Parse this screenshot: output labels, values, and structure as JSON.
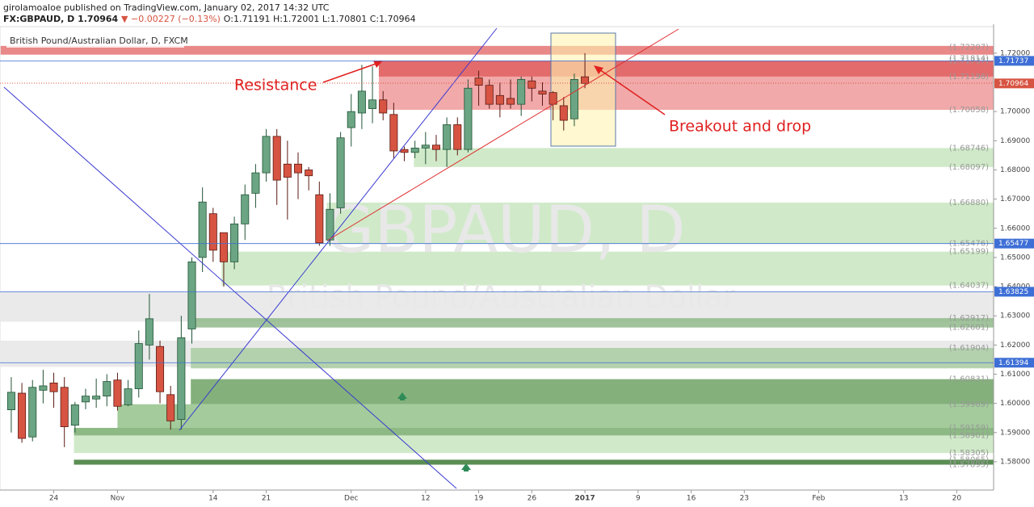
{
  "header": {
    "publisher": "girolamoaloe published on TradingView.com, January 02, 2017 14:32 UTC",
    "symbol": "FX:GBPAUD, D",
    "last": "1.70964",
    "change": "▼ −0.00227 (−0.13%)",
    "ohlc": "O:1.71191 H:1.72001 L:1.70801 C:1.70964"
  },
  "chart_data": {
    "type": "candlestick",
    "legend": "British Pound/Australian Dollar, D, FXCM",
    "watermark": "GBPAUD, D",
    "watermark_sub": "British Pound/Australian Dollar",
    "up_color": "#6ba583",
    "down_color": "#d75442",
    "candles": {
      "open": [
        1.5978,
        1.6035,
        1.5885,
        1.6045,
        1.607,
        1.6055,
        1.5925,
        1.6005,
        1.6015,
        1.6025,
        1.608,
        1.5995,
        1.605,
        1.62,
        1.6195,
        1.603,
        1.5945,
        1.6255,
        1.65,
        1.665,
        1.6585,
        1.6485,
        1.6615,
        1.672,
        1.679,
        1.6915,
        1.682,
        1.682,
        1.68,
        1.6715,
        1.656,
        1.667,
        1.6945,
        1.6995,
        1.701,
        1.704,
        1.699,
        1.687,
        1.686,
        1.6875,
        1.6885,
        1.687,
        1.6955,
        1.687,
        1.7115,
        1.709,
        1.7055,
        1.7045,
        1.7025,
        1.7105,
        1.707,
        1.7065,
        1.702,
        1.6975,
        1.71191
      ],
      "high": [
        1.609,
        1.607,
        1.608,
        1.6115,
        1.6105,
        1.609,
        1.6005,
        1.605,
        1.6085,
        1.61,
        1.6105,
        1.608,
        1.625,
        1.6375,
        1.6215,
        1.606,
        1.63,
        1.65,
        1.674,
        1.667,
        1.6585,
        1.664,
        1.675,
        1.682,
        1.694,
        1.694,
        1.69,
        1.686,
        1.681,
        1.676,
        1.672,
        1.693,
        1.706,
        1.716,
        1.7155,
        1.707,
        1.703,
        1.688,
        1.69,
        1.693,
        1.692,
        1.698,
        1.698,
        1.711,
        1.714,
        1.711,
        1.71,
        1.711,
        1.712,
        1.712,
        1.71,
        1.707,
        1.705,
        1.713,
        1.72001
      ],
      "low": [
        1.59,
        1.5865,
        1.587,
        1.6,
        1.5985,
        1.585,
        1.59,
        1.598,
        1.5985,
        1.599,
        1.5975,
        1.599,
        1.602,
        1.615,
        1.6,
        1.591,
        1.591,
        1.6205,
        1.645,
        1.6485,
        1.64,
        1.646,
        1.656,
        1.667,
        1.676,
        1.668,
        1.663,
        1.67,
        1.673,
        1.654,
        1.654,
        1.665,
        1.688,
        1.694,
        1.696,
        1.697,
        1.684,
        1.683,
        1.684,
        1.682,
        1.683,
        1.681,
        1.685,
        1.686,
        1.702,
        1.701,
        1.698,
        1.701,
        1.6985,
        1.7035,
        1.702,
        1.697,
        1.6935,
        1.695,
        1.70801
      ],
      "close": [
        1.6038,
        1.588,
        1.6055,
        1.606,
        1.604,
        1.592,
        1.5995,
        1.6025,
        1.6025,
        1.6075,
        1.599,
        1.605,
        1.6205,
        1.629,
        1.604,
        1.594,
        1.6225,
        1.6485,
        1.669,
        1.6525,
        1.6485,
        1.6615,
        1.6715,
        1.679,
        1.6915,
        1.6765,
        1.6775,
        1.679,
        1.678,
        1.655,
        1.6665,
        1.691,
        1.7,
        1.707,
        1.704,
        1.6995,
        1.6865,
        1.686,
        1.6875,
        1.6885,
        1.687,
        1.6955,
        1.687,
        1.708,
        1.709,
        1.7025,
        1.7025,
        1.7025,
        1.711,
        1.708,
        1.706,
        1.7025,
        1.697,
        1.711,
        1.70964
      ]
    },
    "xlim": [
      -1.06,
      92.47
    ],
    "xticks": [
      {
        "value": 4,
        "label": "24"
      },
      {
        "value": 10,
        "label": "Nov"
      },
      {
        "value": 19,
        "label": "14"
      },
      {
        "value": 24,
        "label": "21"
      },
      {
        "value": 32,
        "label": "Dec"
      },
      {
        "value": 39,
        "label": "12"
      },
      {
        "value": 44,
        "label": "19"
      },
      {
        "value": 49,
        "label": "26"
      },
      {
        "value": 54,
        "label": "2017"
      },
      {
        "value": 59,
        "label": "9"
      },
      {
        "value": 64,
        "label": "16"
      },
      {
        "value": 69,
        "label": "23"
      },
      {
        "value": 76,
        "label": "Feb"
      },
      {
        "value": 84,
        "label": "13"
      },
      {
        "value": 89,
        "label": "20"
      }
    ],
    "ylim": [
      1.5703,
      1.7291
    ],
    "yticks": [
      {
        "value": 1.58,
        "label": "1.58000"
      },
      {
        "value": 1.59,
        "label": "1.59000"
      },
      {
        "value": 1.6,
        "label": "1.60000"
      },
      {
        "value": 1.61,
        "label": "1.61000"
      },
      {
        "value": 1.62,
        "label": "1.62000"
      },
      {
        "value": 1.63,
        "label": "1.63000"
      },
      {
        "value": 1.64,
        "label": "1.64000"
      },
      {
        "value": 1.65,
        "label": "1.65000"
      },
      {
        "value": 1.66,
        "label": "1.66000"
      },
      {
        "value": 1.67,
        "label": "1.67000"
      },
      {
        "value": 1.68,
        "label": "1.68000"
      },
      {
        "value": 1.69,
        "label": "1.69000"
      },
      {
        "value": 1.7,
        "label": "1.70000"
      },
      {
        "value": 1.71,
        "label": "1.71000"
      },
      {
        "value": 1.72,
        "label": "1.72000"
      }
    ],
    "zones": [
      {
        "top": 1.7225,
        "bottom": 1.7195,
        "from": -1,
        "color": "#e57373"
      },
      {
        "top": 1.7174,
        "bottom": 1.7006,
        "from": 34.6,
        "color": "#ef9a9a"
      },
      {
        "top": 1.7174,
        "bottom": 1.712,
        "from": 34.6,
        "color": "#e06060"
      },
      {
        "top": 1.6875,
        "bottom": 1.681,
        "from": 37.9,
        "color": "#c8e6c0"
      },
      {
        "top": 1.6688,
        "bottom": 1.6548,
        "from": 29.7,
        "color": "#c8e6c0"
      },
      {
        "top": 1.652,
        "bottom": 1.6404,
        "from": 19.8,
        "color": "#c8e6c0"
      },
      {
        "top": 1.6383,
        "bottom": 1.628,
        "from": -1,
        "color": "#e6e6e6"
      },
      {
        "top": 1.6292,
        "bottom": 1.626,
        "from": 17.2,
        "color": "#8fb88a"
      },
      {
        "top": 1.6215,
        "bottom": 1.6125,
        "from": -1,
        "color": "#e6e6e6"
      },
      {
        "top": 1.619,
        "bottom": 1.612,
        "from": 16.9,
        "color": "#a9cda2"
      },
      {
        "top": 1.6083,
        "bottom": 1.5997,
        "from": 16.9,
        "color": "#6fa364"
      },
      {
        "top": 1.5997,
        "bottom": 1.5916,
        "from": 10,
        "color": "#93c28a"
      },
      {
        "top": 1.5916,
        "bottom": 1.589,
        "from": 5.9,
        "color": "#78ad6e"
      },
      {
        "top": 1.589,
        "bottom": 1.583,
        "from": 5.9,
        "color": "#c8e6c0"
      },
      {
        "top": 1.5807,
        "bottom": 1.579,
        "from": 5.9,
        "color": "#3d7a35"
      }
    ],
    "price_labels": [
      {
        "value": 1.72207,
        "label": "(1.72207)"
      },
      {
        "value": 1.71814,
        "label": "(1.71814)"
      },
      {
        "value": 1.71737,
        "label": "(1.71737)"
      },
      {
        "value": 1.71196,
        "label": "(1.71196)"
      },
      {
        "value": 1.70058,
        "label": "(1.70058)"
      },
      {
        "value": 1.68746,
        "label": "(1.68746)"
      },
      {
        "value": 1.68097,
        "label": "(1.68097)"
      },
      {
        "value": 1.6688,
        "label": "(1.66880)"
      },
      {
        "value": 1.65476,
        "label": "(1.65476)"
      },
      {
        "value": 1.65199,
        "label": "(1.65199)"
      },
      {
        "value": 1.64037,
        "label": "(1.64037)"
      },
      {
        "value": 1.62917,
        "label": "(1.62917)"
      },
      {
        "value": 1.62601,
        "label": "(1.62601)"
      },
      {
        "value": 1.61904,
        "label": "(1.61904)"
      },
      {
        "value": 1.60831,
        "label": "(1.60831)"
      },
      {
        "value": 1.59969,
        "label": "(1.59969)"
      },
      {
        "value": 1.59159,
        "label": "(1.59159)"
      },
      {
        "value": 1.58901,
        "label": "(1.58901)"
      },
      {
        "value": 1.58305,
        "label": "(1.58305)"
      },
      {
        "value": 1.58065,
        "label": "(1.58065)"
      },
      {
        "value": 1.57895,
        "label": "(1.57895)"
      }
    ],
    "markers": [
      {
        "value": 1.71737,
        "label": "1.71737",
        "color": "#3d6fd6"
      },
      {
        "value": 1.70964,
        "label": "1.70964",
        "color": "#d75442"
      },
      {
        "value": 1.65477,
        "label": "1.65477",
        "color": "#3d6fd6"
      },
      {
        "value": 1.63825,
        "label": "1.63825",
        "color": "#3d6fd6"
      },
      {
        "value": 1.61394,
        "label": "1.61394",
        "color": "#3d6fd6"
      }
    ],
    "annotations": [
      "Resistance",
      "Breakout and drop"
    ]
  }
}
